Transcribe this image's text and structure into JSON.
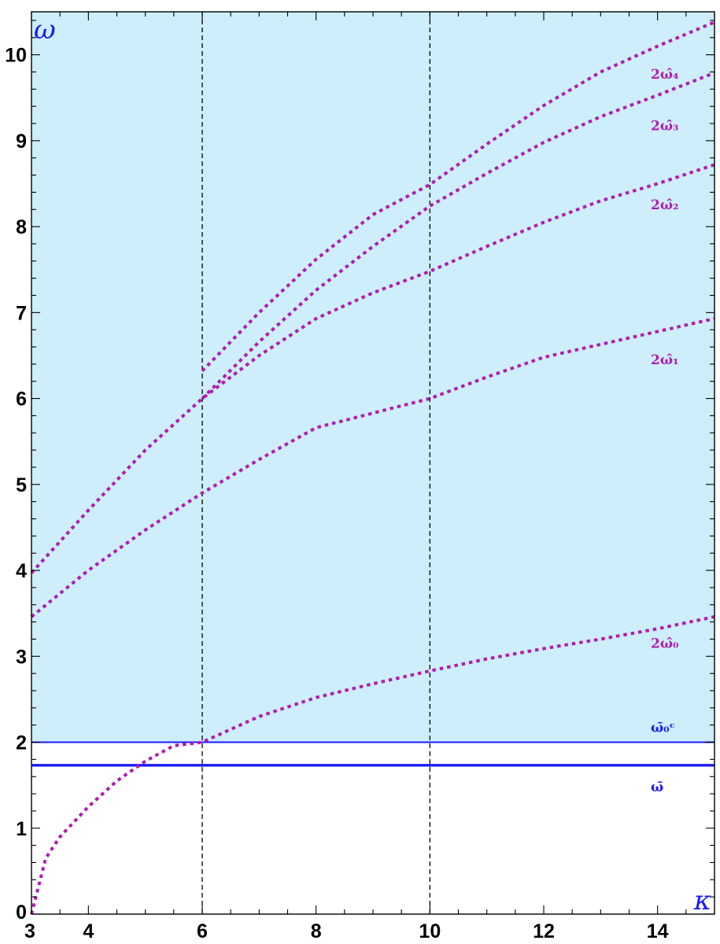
{
  "chart_data": {
    "type": "line",
    "xlabel": "κ",
    "ylabel": "ω",
    "xlim": [
      3,
      15
    ],
    "ylim": [
      0,
      10.5
    ],
    "x_ticks": [
      {
        "value": 3,
        "label": "3"
      },
      {
        "value": 4,
        "label": "4"
      },
      {
        "value": 6,
        "label": "6"
      },
      {
        "value": 8,
        "label": "8"
      },
      {
        "value": 10,
        "label": "10"
      },
      {
        "value": 12,
        "label": "12"
      },
      {
        "value": 14,
        "label": "14"
      }
    ],
    "y_ticks": [
      {
        "value": 0,
        "label": "0"
      },
      {
        "value": 1,
        "label": "1"
      },
      {
        "value": 2,
        "label": "2"
      },
      {
        "value": 3,
        "label": "3"
      },
      {
        "value": 4,
        "label": "4"
      },
      {
        "value": 5,
        "label": "5"
      },
      {
        "value": 6,
        "label": "6"
      },
      {
        "value": 7,
        "label": "7"
      },
      {
        "value": 8,
        "label": "8"
      },
      {
        "value": 9,
        "label": "9"
      },
      {
        "value": 10,
        "label": "10"
      }
    ],
    "shaded_region": {
      "y_from": 2.0,
      "y_to": 10.5,
      "color": "#cdeefa"
    },
    "vertical_lines": [
      6,
      10
    ],
    "horizontal_lines": [
      {
        "label": "ω̄₀ᶜ",
        "y": 2.0,
        "color": "#1a1aff"
      },
      {
        "label": "ω̄",
        "y": 1.732,
        "color": "#1a1aff"
      }
    ],
    "series": [
      {
        "label": "2ω̂₀",
        "color": "#b01cb0",
        "x": [
          3,
          3.25,
          3.5,
          4,
          4.5,
          5,
          5.5,
          6,
          7,
          8,
          9,
          10,
          11,
          12,
          13,
          14,
          15
        ],
        "y": [
          0,
          0.65,
          0.9,
          1.25,
          1.55,
          1.78,
          1.96,
          2.0,
          2.3,
          2.52,
          2.68,
          2.83,
          2.97,
          3.09,
          3.2,
          3.32,
          3.46
        ]
      },
      {
        "label": "2ω̂₁",
        "color": "#b01cb0",
        "x": [
          3,
          4,
          5,
          6,
          7,
          8,
          9,
          10,
          11,
          12,
          13,
          14,
          15
        ],
        "y": [
          3.46,
          4.0,
          4.47,
          4.9,
          5.29,
          5.66,
          5.83,
          6.0,
          6.25,
          6.48,
          6.63,
          6.78,
          6.93
        ]
      },
      {
        "label": "2ω̂₂",
        "color": "#b01cb0",
        "x": [
          3,
          4,
          5,
          6,
          7,
          8,
          9,
          10,
          11,
          12,
          13,
          14,
          15
        ],
        "y": [
          3.97,
          4.7,
          5.4,
          6.0,
          6.5,
          6.93,
          7.23,
          7.48,
          7.77,
          8.05,
          8.3,
          8.5,
          8.72
        ]
      },
      {
        "label": "2ω̂₃",
        "color": "#b01cb0",
        "x": [
          6,
          7,
          8,
          9,
          10,
          11,
          12,
          13,
          14,
          15
        ],
        "y": [
          6.0,
          6.66,
          7.26,
          7.77,
          8.24,
          8.62,
          8.98,
          9.28,
          9.53,
          9.79
        ]
      },
      {
        "label": "2ω̂₄",
        "color": "#b01cb0",
        "x": [
          6,
          7,
          8,
          9,
          10,
          11,
          12,
          13,
          14,
          15
        ],
        "y": [
          6.32,
          7.0,
          7.62,
          8.14,
          8.49,
          8.96,
          9.41,
          9.8,
          10.1,
          10.38
        ]
      }
    ]
  }
}
